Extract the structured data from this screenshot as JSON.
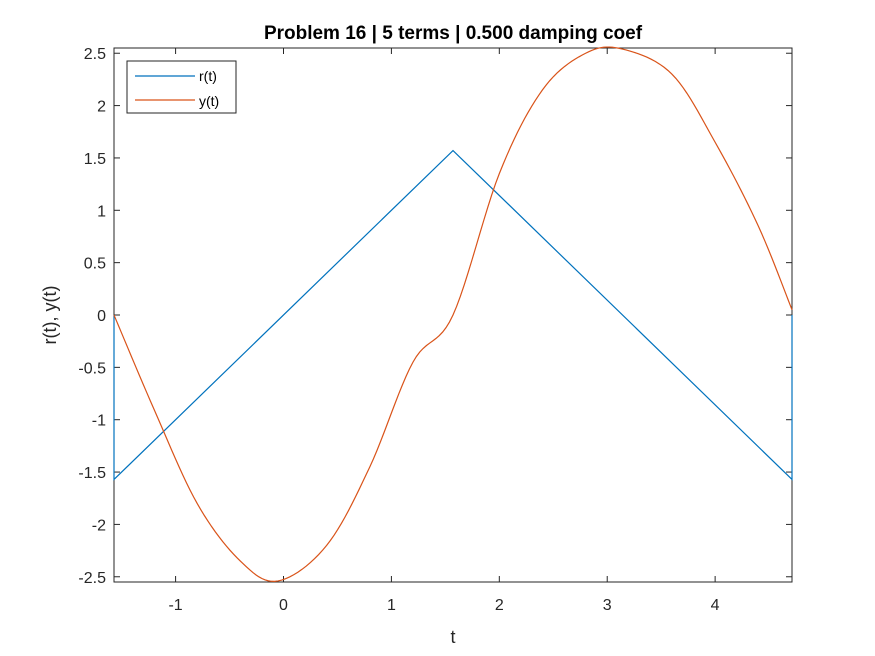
{
  "chart_data": {
    "type": "line",
    "title": "Problem 16 | 5 terms | 0.500 damping coef",
    "xlabel": "t",
    "ylabel": "r(t), y(t)",
    "xlim": [
      -1.5708,
      4.7124
    ],
    "ylim": [
      -2.55,
      2.55
    ],
    "xticks": [
      -1,
      0,
      1,
      2,
      3,
      4
    ],
    "xtick_labels": [
      "-1",
      "0",
      "1",
      "2",
      "3",
      "4"
    ],
    "yticks": [
      -2.5,
      -2,
      -1.5,
      -1,
      -0.5,
      0,
      0.5,
      1,
      1.5,
      2,
      2.5
    ],
    "ytick_labels": [
      "-2.5",
      "-2",
      "-1.5",
      "-1",
      "-0.5",
      "0",
      "0.5",
      "1",
      "1.5",
      "2",
      "2.5"
    ],
    "grid": false,
    "legend_position": "top-left",
    "series": [
      {
        "name": "r(t)",
        "color": "#0072BD",
        "x": [
          -1.5708,
          -1.5708,
          1.5708,
          4.7124,
          4.7124
        ],
        "y": [
          0,
          -1.5708,
          1.5708,
          -1.5708,
          0
        ]
      },
      {
        "name": "y(t)",
        "color": "#D95319",
        "x": [
          -1.5708,
          -1.2,
          -0.8,
          -0.4,
          -0.05,
          0.4,
          0.8,
          1.2,
          1.5708,
          2.0,
          2.4,
          2.8,
          3.14,
          3.6,
          4.0,
          4.4,
          4.7124
        ],
        "y": [
          0.0,
          -0.9,
          -1.8,
          -2.35,
          -2.54,
          -2.2,
          -1.45,
          -0.45,
          0.0,
          1.35,
          2.15,
          2.5,
          2.54,
          2.3,
          1.65,
          0.85,
          0.05
        ]
      }
    ]
  }
}
